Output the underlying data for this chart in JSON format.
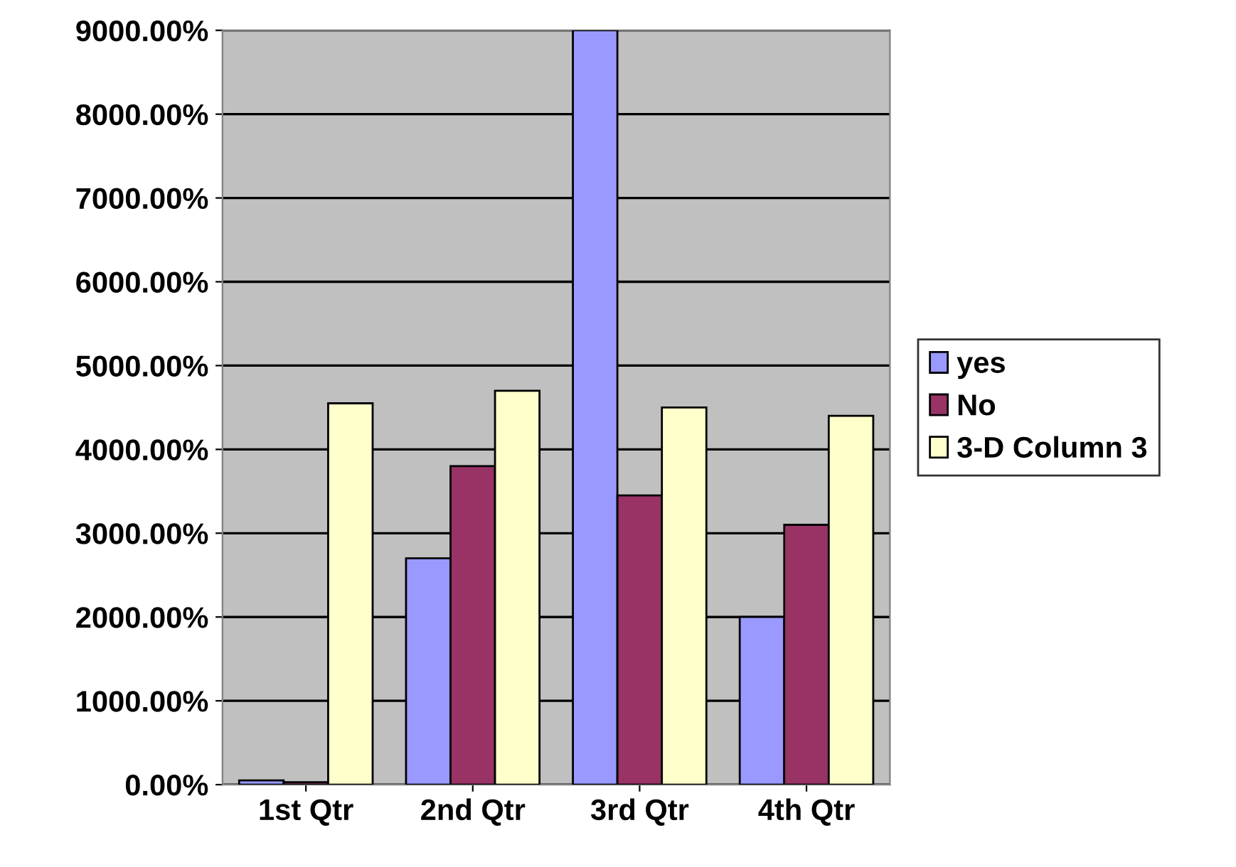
{
  "chart_data": {
    "type": "bar",
    "categories": [
      "1st Qtr",
      "2nd Qtr",
      "3rd Qtr",
      "4th Qtr"
    ],
    "series": [
      {
        "name": "yes",
        "color": "#9999ff",
        "values": [
          50,
          2700,
          9000,
          2000
        ]
      },
      {
        "name": "No",
        "color": "#993366",
        "values": [
          30,
          3800,
          3450,
          3100
        ]
      },
      {
        "name": "3-D Column 3",
        "color": "#ffffcc",
        "values": [
          4550,
          4700,
          4500,
          4400
        ]
      }
    ],
    "ylim": [
      0,
      9000
    ],
    "yticks": [
      {
        "value": 0,
        "label": "0.00%"
      },
      {
        "value": 1000,
        "label": "1000.00%"
      },
      {
        "value": 2000,
        "label": "2000.00%"
      },
      {
        "value": 3000,
        "label": "3000.00%"
      },
      {
        "value": 4000,
        "label": "4000.00%"
      },
      {
        "value": 5000,
        "label": "5000.00%"
      },
      {
        "value": 6000,
        "label": "6000.00%"
      },
      {
        "value": 7000,
        "label": "7000.00%"
      },
      {
        "value": 8000,
        "label": "8000.00%"
      },
      {
        "value": 9000,
        "label": "9000.00%"
      }
    ],
    "grid": "y",
    "legend": "right"
  }
}
